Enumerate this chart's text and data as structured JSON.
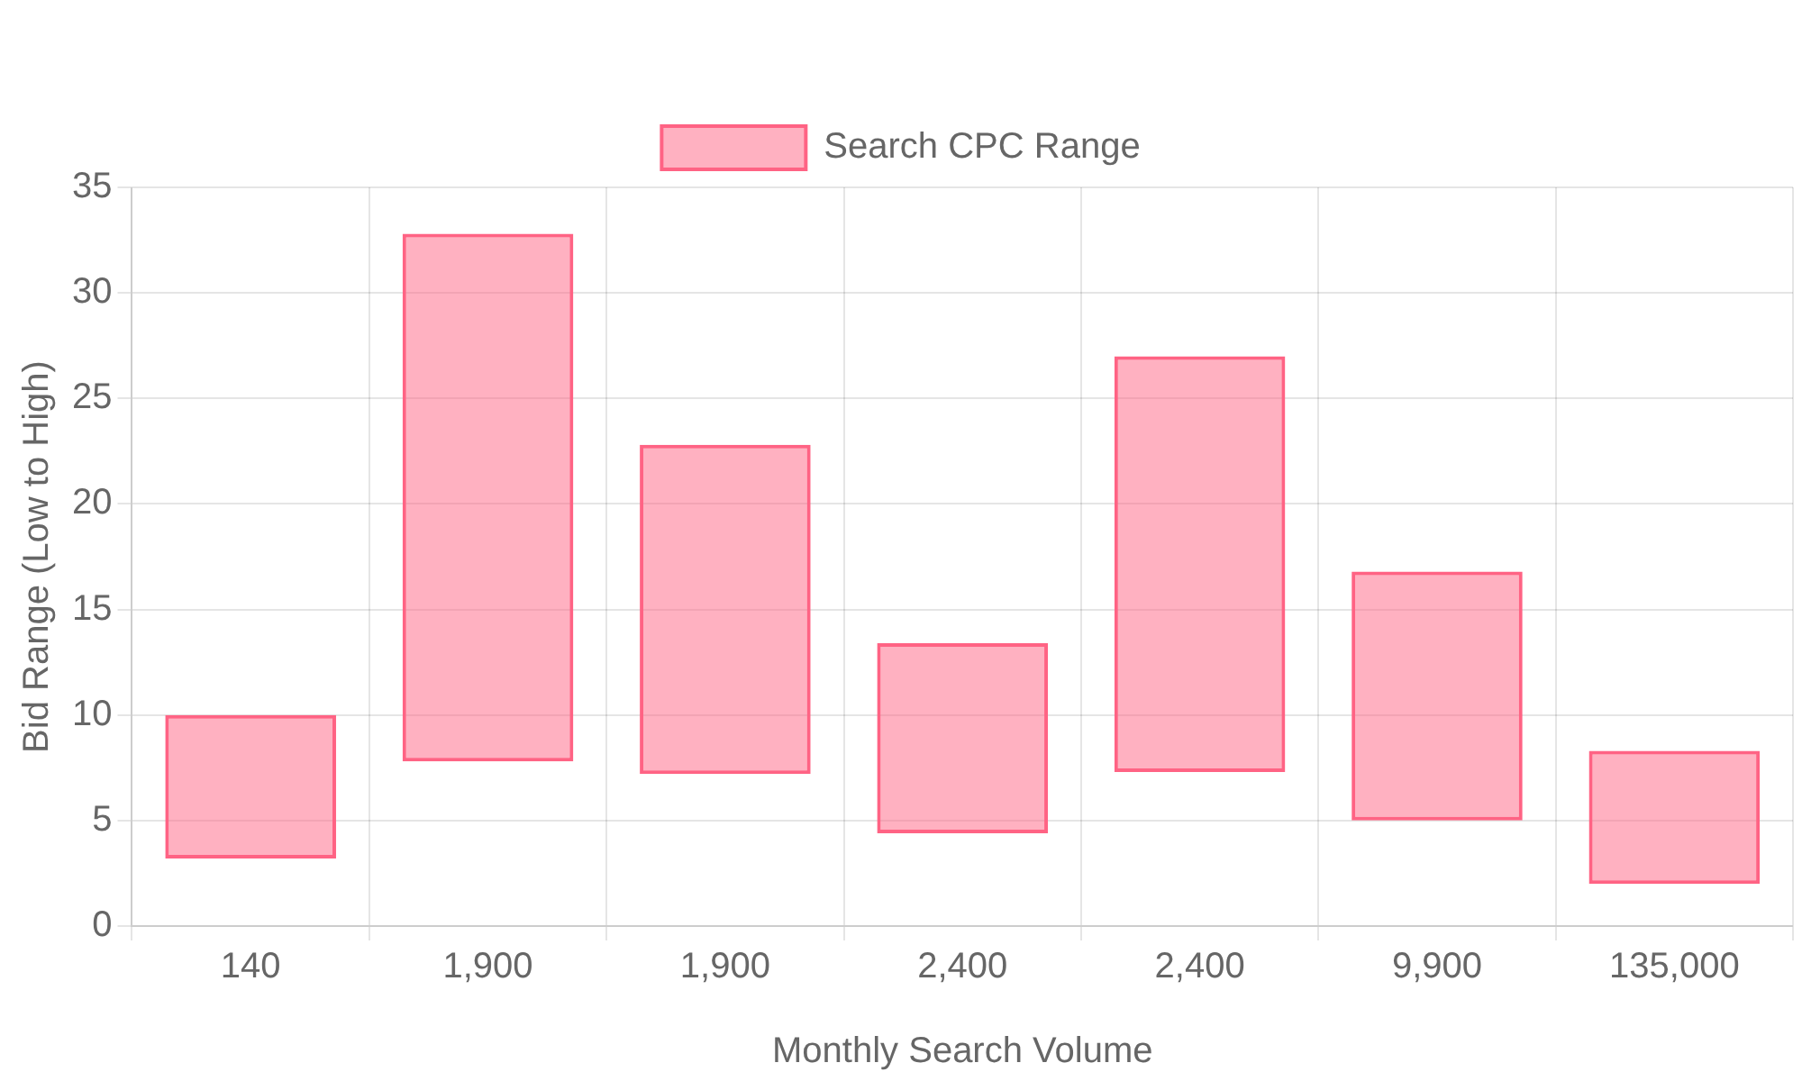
{
  "chart_data": {
    "type": "bar",
    "xlabel": "Monthly Search Volume",
    "ylabel": "Bid Range (Low to High)",
    "categories": [
      "140",
      "1,900",
      "1,900",
      "2,400",
      "2,400",
      "9,900",
      "135,000"
    ],
    "series": [
      {
        "name": "Search CPC Range",
        "color": "#ff6384",
        "values": [
          6.8,
          25.0,
          15.6,
          9.0,
          19.7,
          11.8,
          6.3
        ],
        "base": [
          3.2,
          7.8,
          7.2,
          4.4,
          7.3,
          5.0,
          2.0
        ]
      }
    ],
    "ylim": [
      0,
      35
    ],
    "yticks": [
      0,
      5,
      10,
      15,
      20,
      25,
      30,
      35
    ],
    "grid": true,
    "legend": "top"
  }
}
